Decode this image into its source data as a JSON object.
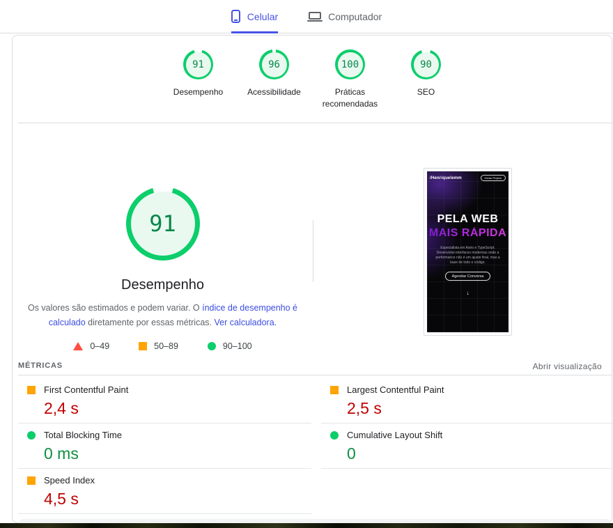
{
  "colors": {
    "accent_blue": "#4753e6",
    "link_blue": "#3b4de2",
    "green": "#0cce6b",
    "green_dark": "#088649",
    "orange": "#ffa400",
    "red": "#ff4e42",
    "value_red": "#c00000",
    "value_green": "#0d8f40",
    "text_dark": "#202124",
    "text_gray": "#5f6368"
  },
  "tabs": [
    {
      "label": "Celular",
      "active": true
    },
    {
      "label": "Computador",
      "active": false
    }
  ],
  "scores": [
    {
      "label": "Desempenho",
      "value": 91
    },
    {
      "label": "Acessibilidade",
      "value": 96
    },
    {
      "label": "Práticas recomendadas",
      "value": 100
    },
    {
      "label": "SEO",
      "value": 90
    }
  ],
  "gauge": {
    "value": 91,
    "label": "Desempenho"
  },
  "description": {
    "p1": "Os valores são estimados e podem variar. O ",
    "link1": "índice de desempenho é calculado",
    "p2": " diretamente por essas métricas. ",
    "link2": "Ver calculadora."
  },
  "legend": [
    {
      "range": "0–49",
      "shape": "triangle",
      "color": "#ff4e42"
    },
    {
      "range": "50–89",
      "shape": "square",
      "color": "#ffa400"
    },
    {
      "range": "90–100",
      "shape": "circle",
      "color": "#0cce6b"
    }
  ],
  "metrics_header": {
    "title": "MÉTRICAS",
    "action": "Abrir visualização"
  },
  "metrics": {
    "left": [
      {
        "name": "First Contentful Paint",
        "value": "2,4 s",
        "icon": "square",
        "icon_color": "#ffa400",
        "value_color": "#c00000"
      },
      {
        "name": "Total Blocking Time",
        "value": "0 ms",
        "icon": "circle",
        "icon_color": "#0cce6b",
        "value_color": "#0d8f40"
      },
      {
        "name": "Speed Index",
        "value": "4,5 s",
        "icon": "square",
        "icon_color": "#ffa400",
        "value_color": "#c00000"
      }
    ],
    "right": [
      {
        "name": "Largest Contentful Paint",
        "value": "2,5 s",
        "icon": "square",
        "icon_color": "#ffa400",
        "value_color": "#c00000"
      },
      {
        "name": "Cumulative Layout Shift",
        "value": "0",
        "icon": "circle",
        "icon_color": "#0cce6b",
        "value_color": "#0d8f40"
      }
    ]
  },
  "preview": {
    "logo": "/Henriquelemm",
    "cta": "Iniciar Projeto",
    "title1": "PELA WEB",
    "title2": "MAIS RÁPIDA",
    "body": "Especialista em Astro e TypeScript. Desenvolve interfaces modernas onde a performance não é um ajuste final, mas a base de todo o código.",
    "button": "Agendar Conversa",
    "arrow": "↓"
  }
}
